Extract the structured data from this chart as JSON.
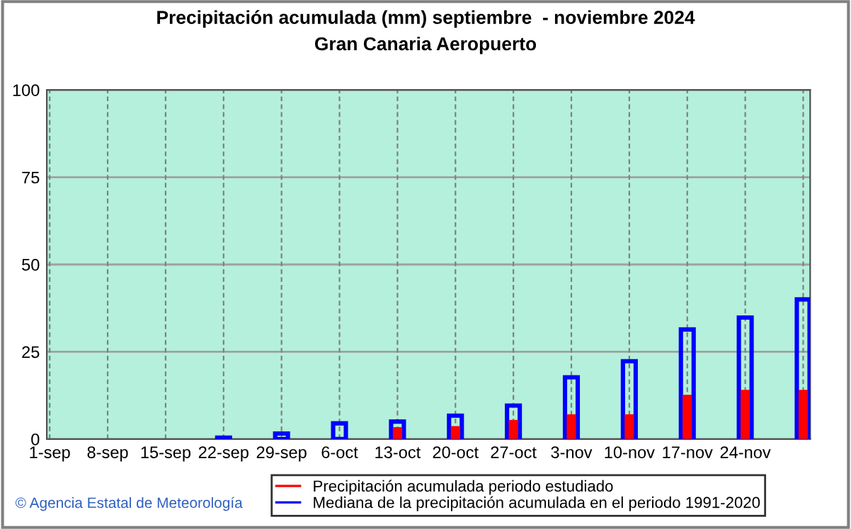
{
  "chart_data": {
    "type": "bar",
    "title": "Precipitación acumulada (mm) septiembre  - noviembre 2024",
    "subtitle": "Gran Canaria Aeropuerto",
    "categories": [
      "1-sep",
      "8-sep",
      "15-sep",
      "22-sep",
      "29-sep",
      "6-oct",
      "13-oct",
      "20-oct",
      "27-oct",
      "3-nov",
      "10-nov",
      "17-nov",
      "24-nov",
      null
    ],
    "series": [
      {
        "name": "Precipitación acumulada periodo estudiado",
        "color": "#ff0000",
        "values": [
          null,
          null,
          null,
          0,
          0,
          0,
          3.4,
          3.7,
          5.5,
          7.1,
          7.1,
          12.7,
          14.1,
          14.1
        ]
      },
      {
        "name": "Mediana de la precipitación acumulada en el periodo 1991-2020",
        "color": "#0000ff",
        "values": [
          null,
          null,
          null,
          0.4,
          1.6,
          4.5,
          5.0,
          6.7,
          9.6,
          17.7,
          22.3,
          31.4,
          34.8,
          40.0
        ]
      }
    ],
    "ylim": [
      0,
      100
    ],
    "yticks": [
      0,
      25,
      50,
      75,
      100
    ],
    "grid": true,
    "legend": "bottom",
    "annotations": [
      "© Agencia Estatal de Meteorología"
    ]
  }
}
